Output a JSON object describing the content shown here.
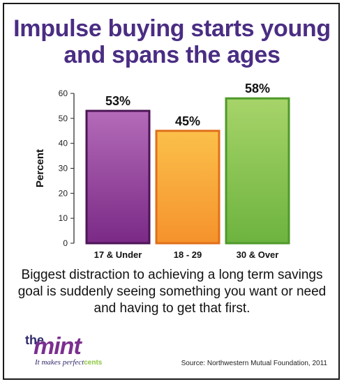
{
  "title": "Impulse buying starts young and spans the ages",
  "caption": "Biggest distraction to achieving a long term savings goal is suddenly seeing something you want or need and having to get that first.",
  "source": "Source: Northwestern Mutual Foundation, 2011",
  "logo": {
    "the": "the",
    "mint": "mint",
    "tagline_prefix": "It makes perfect",
    "tagline_suffix": "cents"
  },
  "chart_data": {
    "type": "bar",
    "categories": [
      "17 & Under",
      "18 - 29",
      "30 & Over"
    ],
    "values": [
      53,
      45,
      58
    ],
    "data_labels": [
      "53%",
      "45%",
      "58%"
    ],
    "ylabel": "Percent",
    "xlabel": "",
    "ylim": [
      0,
      60
    ],
    "yticks": [
      0,
      10,
      20,
      30,
      40,
      50,
      60
    ],
    "grid": false,
    "colors": [
      "#7a2a86",
      "#f5922c",
      "#6db33f"
    ],
    "colors_light": [
      "#b46bb8",
      "#fbc04a",
      "#a7d46a"
    ],
    "border_colors": [
      "#4d1557",
      "#e0701a",
      "#4e9a2a"
    ]
  }
}
